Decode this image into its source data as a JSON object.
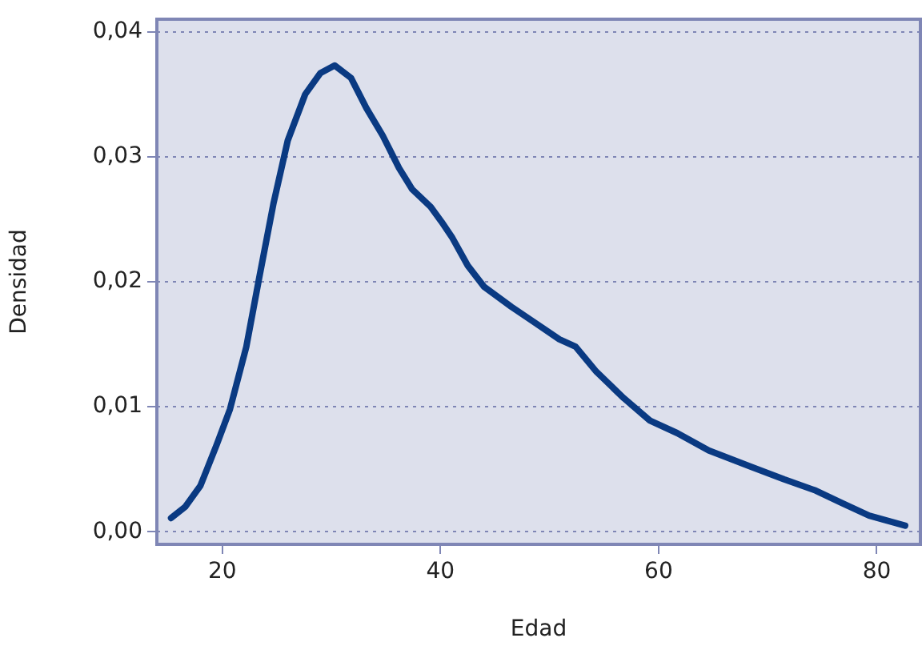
{
  "chart_data": {
    "type": "line",
    "xlabel": "Edad",
    "ylabel": "Densidad",
    "x": [
      15.3,
      16.6,
      18.0,
      19.5,
      20.7,
      22.2,
      23.4,
      24.7,
      26.0,
      27.6,
      29.0,
      30.3,
      31.8,
      33.2,
      34.7,
      36.2,
      37.4,
      39.1,
      40.1,
      41.1,
      42.5,
      44.0,
      46.5,
      48.7,
      50.9,
      52.4,
      54.3,
      56.8,
      59.2,
      61.7,
      64.6,
      68.5,
      71.5,
      74.4,
      76.8,
      79.3,
      82.6
    ],
    "series": [
      {
        "color": "#0a3a82",
        "values": [
          0.0011,
          0.002,
          0.0037,
          0.007,
          0.0098,
          0.0148,
          0.0204,
          0.0263,
          0.0313,
          0.035,
          0.0367,
          0.0373,
          0.0363,
          0.0339,
          0.0317,
          0.0291,
          0.0274,
          0.026,
          0.0248,
          0.0235,
          0.0213,
          0.0196,
          0.018,
          0.0167,
          0.0154,
          0.0148,
          0.0128,
          0.0107,
          0.0089,
          0.0079,
          0.0065,
          0.0052,
          0.0042,
          0.0033,
          0.0023,
          0.0013,
          0.0005
        ]
      }
    ],
    "xlim": [
      14,
      84
    ],
    "ylim": [
      -0.001,
      0.041
    ],
    "xticks": [
      20,
      40,
      60,
      80
    ],
    "yticks": [
      {
        "value": 0,
        "label": "0,00"
      },
      {
        "value": 0.01,
        "label": "0,01"
      },
      {
        "value": 0.02,
        "label": "0,02"
      },
      {
        "value": 0.03,
        "label": "0,03"
      },
      {
        "value": 0.04,
        "label": "0,04"
      }
    ],
    "grid": "y",
    "legend": false
  }
}
